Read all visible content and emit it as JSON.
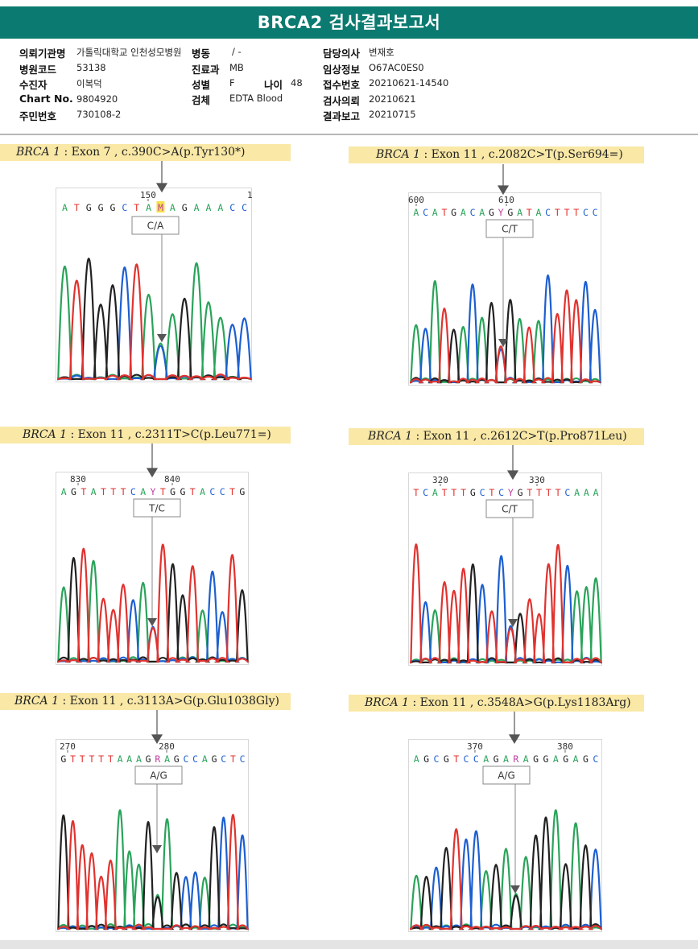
{
  "report": {
    "title": "BRCA2 검사결과보고서",
    "fields": {
      "institution_label": "의뢰기관명",
      "institution_value": "가톨릭대학교 인천성모병원",
      "ward_label": "병동",
      "ward_value": "/ -",
      "doctor_label": "담당의사",
      "doctor_value": "변재호",
      "hospital_code_label": "병원코드",
      "hospital_code_value": "53138",
      "department_label": "진료과",
      "department_value": "MB",
      "clinical_info_label": "임상정보",
      "clinical_info_value": "O67AC0ES0",
      "examinee_label": "수진자",
      "examinee_value": "이복덕",
      "sex_label": "성별",
      "sex_value": "F",
      "age_label": "나이",
      "age_value": "48",
      "receipt_no_label": "접수번호",
      "receipt_no_value": "20210621-14540",
      "chart_no_label": "Chart No.",
      "chart_no_value": "9804920",
      "specimen_label": "검체",
      "specimen_value": "EDTA Blood",
      "test_request_label": "검사의뢰",
      "test_request_value": "20210621",
      "resident_no_label": "주민번호",
      "resident_no_value": "730108-2",
      "report_date_label": "결과보고",
      "report_date_value": "20210715"
    }
  },
  "base_colors": {
    "A": "#2aa35a",
    "C": "#1d5fd0",
    "G": "#222222",
    "T": "#e0332f",
    "IUPAC": "#c040a0"
  },
  "variants": [
    {
      "gene": "BRCA 1",
      "description": " : Exon 7 , c.390C>A(p.Tyr130*)",
      "tick_left": "150",
      "tick_right": "1",
      "sequence": "ATGGGCTAMAGAAACC",
      "call": "C/A",
      "highlight_index": 8
    },
    {
      "gene": "BRCA 1",
      "description": " : Exon 11 , c.2082C>T(p.Ser694=)",
      "tick_left": "600",
      "tick_right": "610",
      "sequence": "ACATGACAGYGATACTTTCC",
      "call": "C/T",
      "highlight_index": -1
    },
    {
      "gene": "BRCA 1",
      "description": " : Exon 11 , c.2311T>C(p.Leu771=)",
      "tick_left": "830",
      "tick_right": "840",
      "sequence": "AGTATTTCAYTGGTACCTG",
      "call": "T/C",
      "highlight_index": -1
    },
    {
      "gene": "BRCA 1",
      "description": " : Exon 11 , c.2612C>T(p.Pro871Leu)",
      "tick_left": "320",
      "tick_right": "330",
      "sequence": "TCATTTGCTCYGTTTTCAAA",
      "call": "C/T",
      "highlight_index": -1
    },
    {
      "gene": "BRCA 1",
      "description": " : Exon 11 , c.3113A>G(p.Glu1038Gly)",
      "tick_left": "270",
      "tick_right": "280",
      "sequence": "GTTTTTAAAGRAGCCAGCTC",
      "call": "A/G",
      "highlight_index": -1
    },
    {
      "gene": "BRCA 1",
      "description": " : Exon 11 , c.3548A>G(p.Lys1183Arg)",
      "tick_left": "370",
      "tick_right": "380",
      "sequence": "AGCGTCCAGARAGGAGAGC",
      "call": "A/G",
      "highlight_index": -1
    }
  ]
}
